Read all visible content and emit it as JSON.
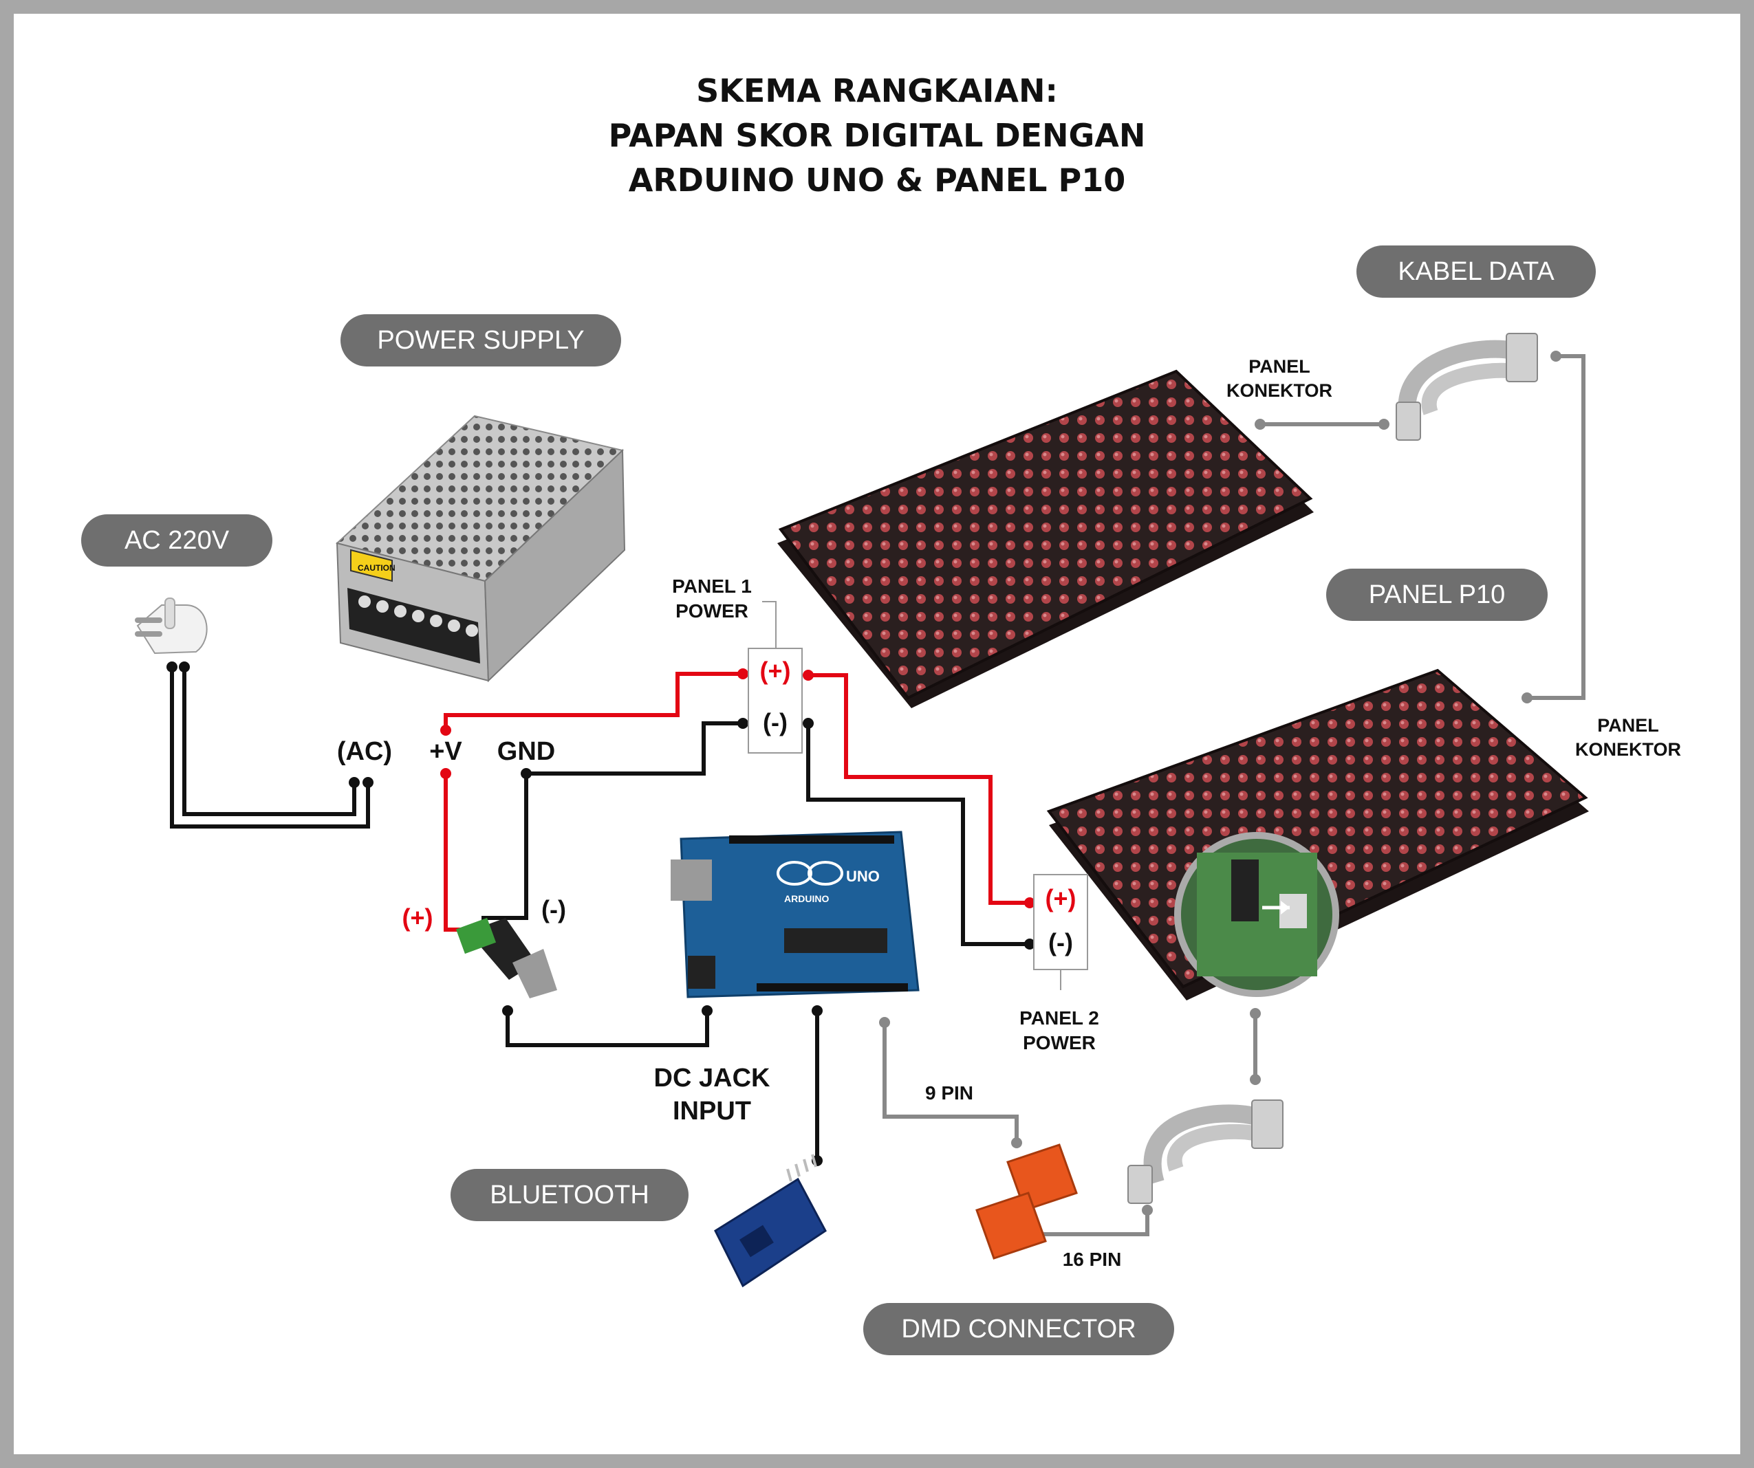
{
  "title": {
    "line1": "SKEMA RANGKAIAN:",
    "line2": "PAPAN SKOR DIGITAL DENGAN",
    "line3": "ARDUINO UNO & PANEL P10"
  },
  "badges": {
    "power_supply": "POWER SUPPLY",
    "ac_220v": "AC 220V",
    "kabel_data": "KABEL DATA",
    "panel_p10": "PANEL P10",
    "bluetooth": "BLUETOOTH",
    "dmd_connector": "DMD CONNECTOR"
  },
  "labels": {
    "ac": "(AC)",
    "plus_v": "+V",
    "gnd": "GND",
    "jack_plus": "(+)",
    "jack_minus": "(-)",
    "dc_jack_line1": "DC JACK",
    "dc_jack_line2": "INPUT",
    "panel1_power_line1": "PANEL 1",
    "panel1_power_line2": "POWER",
    "panel1_plus": "(+)",
    "panel1_minus": "(-)",
    "panel2_power_line1": "PANEL 2",
    "panel2_power_line2": "POWER",
    "panel2_plus": "(+)",
    "panel2_minus": "(-)",
    "panel_konektor_top_line1": "PANEL",
    "panel_konektor_top_line2": "KONEKTOR",
    "panel_konektor_right_line1": "PANEL",
    "panel_konektor_right_line2": "KONEKTOR",
    "nine_pin": "9 PIN",
    "sixteen_pin": "16 PIN"
  },
  "components": {
    "arduino_logo": "ARDUINO",
    "arduino_model": "UNO",
    "psu_caution": "CAUTION"
  },
  "colors": {
    "positive_wire": "#e30613",
    "negative_wire": "#111111",
    "data_wire": "#888888",
    "badge_fill": "#6f6f6f",
    "led_panel": "#2a1f1f",
    "led_dot": "#b2454a",
    "pcb_blue": "#1d5f98",
    "connector_orange": "#e8561d"
  }
}
